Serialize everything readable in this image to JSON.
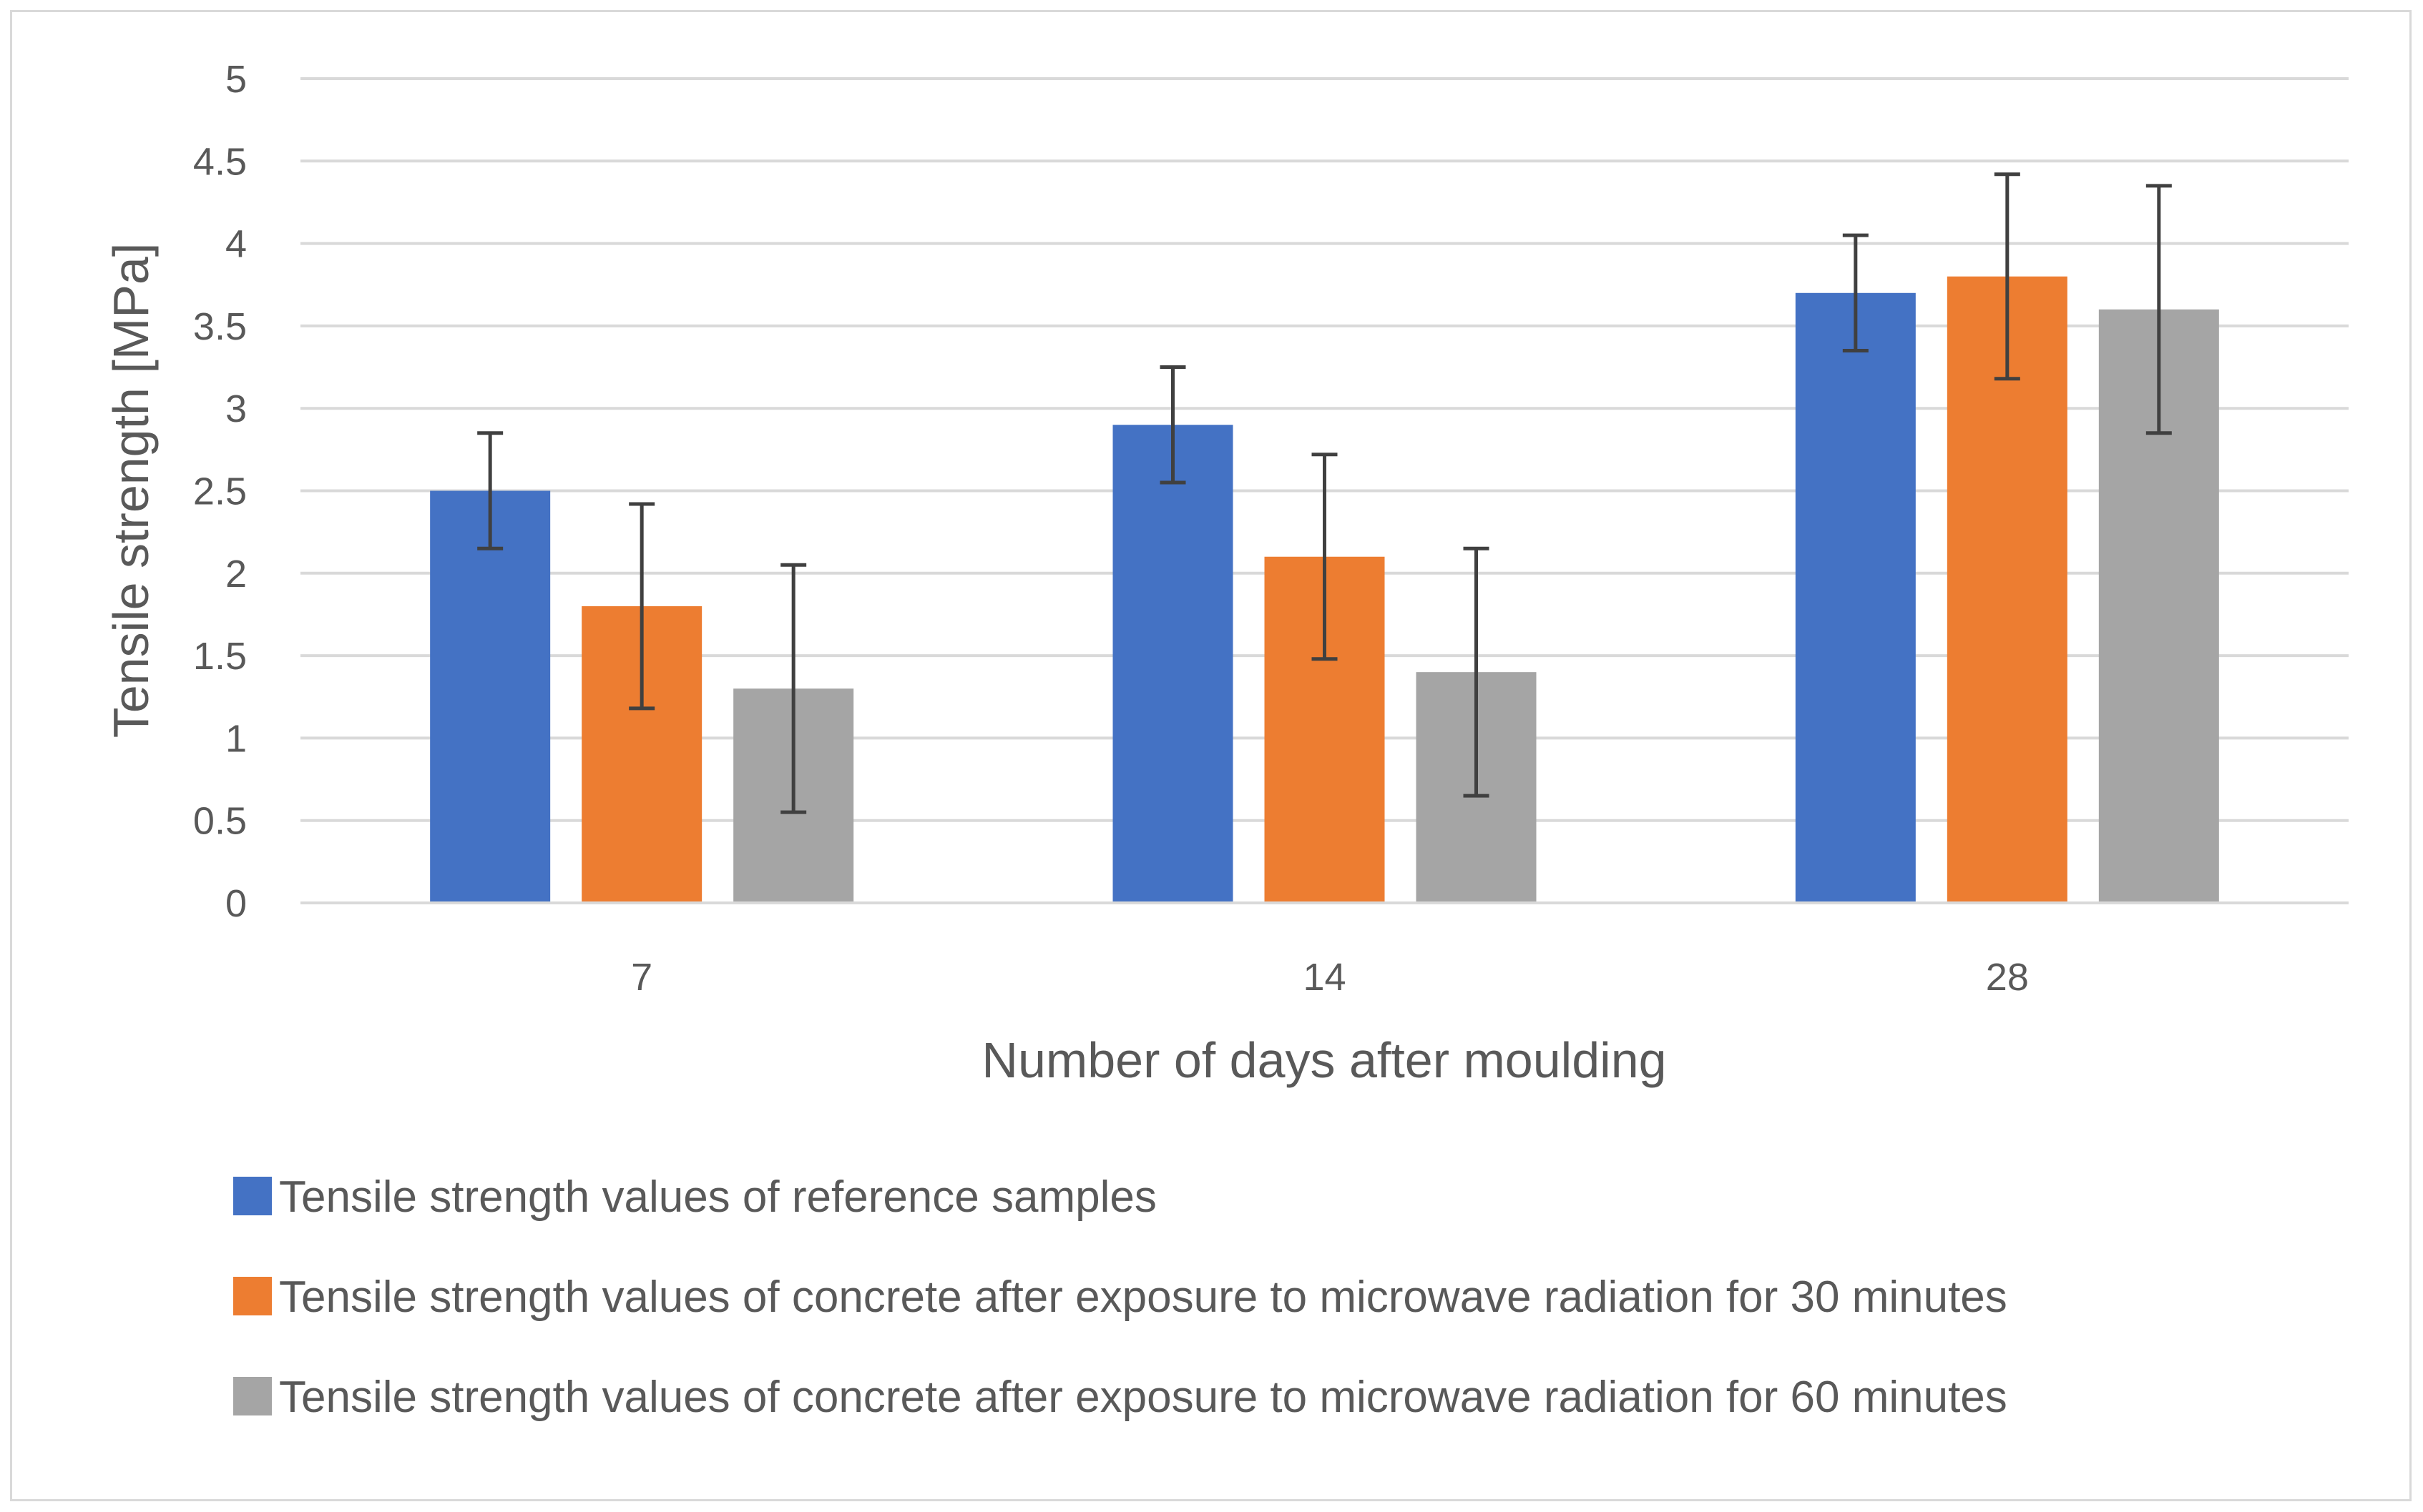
{
  "chart_data": {
    "type": "bar",
    "title": "",
    "xlabel": "Number of days after moulding",
    "ylabel": "Tensile strength [MPa]",
    "ylim": [
      0,
      5
    ],
    "yticks": [
      0,
      0.5,
      1,
      1.5,
      2,
      2.5,
      3,
      3.5,
      4,
      4.5,
      5
    ],
    "ytick_labels": [
      "0",
      "0.5",
      "1",
      "1.5",
      "2",
      "2.5",
      "3",
      "3.5",
      "4",
      "4.5",
      "5"
    ],
    "grid": true,
    "legend_position": "bottom",
    "categories": [
      "7",
      "14",
      "28"
    ],
    "series": [
      {
        "name": "Tensile strength values of reference samples",
        "color": "#4472c4",
        "values": [
          2.5,
          2.9,
          3.7
        ],
        "error_low": [
          2.15,
          2.55,
          3.35
        ],
        "error_high": [
          2.85,
          3.25,
          4.05
        ]
      },
      {
        "name": "Tensile strength values of concrete after exposure to microwave radiation for 30 minutes",
        "color": "#ed7d31",
        "values": [
          1.8,
          2.1,
          3.8
        ],
        "error_low": [
          1.18,
          1.48,
          3.18
        ],
        "error_high": [
          2.42,
          2.72,
          4.42
        ]
      },
      {
        "name": "Tensile strength values of concrete after exposure to microwave radiation for 60 minutes",
        "color": "#a5a5a5",
        "values": [
          1.3,
          1.4,
          3.6
        ],
        "error_low": [
          0.55,
          0.65,
          2.85
        ],
        "error_high": [
          2.05,
          2.15,
          4.35
        ]
      }
    ]
  }
}
